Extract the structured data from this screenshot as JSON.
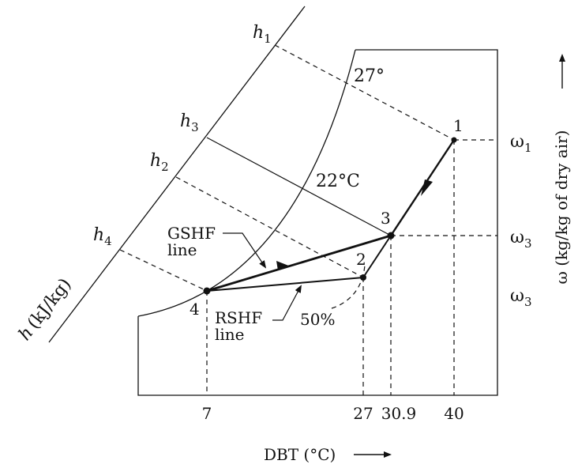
{
  "h_axis": {
    "label_symbol": "h",
    "label_units": "(kJ/kg)",
    "lines": [
      {
        "symbol": "h",
        "sub": "1"
      },
      {
        "symbol": "h",
        "sub": "3"
      },
      {
        "symbol": "h",
        "sub": "2"
      },
      {
        "symbol": "h",
        "sub": "4"
      }
    ]
  },
  "saturation_labels": {
    "wet_bulb_1": "27°",
    "wet_bulb_2": "22°C",
    "rh": "50%"
  },
  "states": [
    {
      "id": "1",
      "dbt": 40
    },
    {
      "id": "3",
      "dbt": 30.9
    },
    {
      "id": "2",
      "dbt": 27
    },
    {
      "id": "4",
      "dbt": 7
    }
  ],
  "lines": {
    "gshf": {
      "label_1": "GSHF",
      "label_2": "line"
    },
    "rshf": {
      "label_1": "RSHF",
      "label_2": "line"
    }
  },
  "x_axis": {
    "label": "DBT (°C)",
    "ticks": [
      "7",
      "27",
      "30.9",
      "40"
    ]
  },
  "y_axis": {
    "label": "ω (kg/kg of dry air)",
    "ticks": [
      {
        "symbol": "ω",
        "sub": "1"
      },
      {
        "symbol": "ω",
        "sub": "3"
      },
      {
        "symbol": "ω",
        "sub": "3"
      }
    ]
  }
}
